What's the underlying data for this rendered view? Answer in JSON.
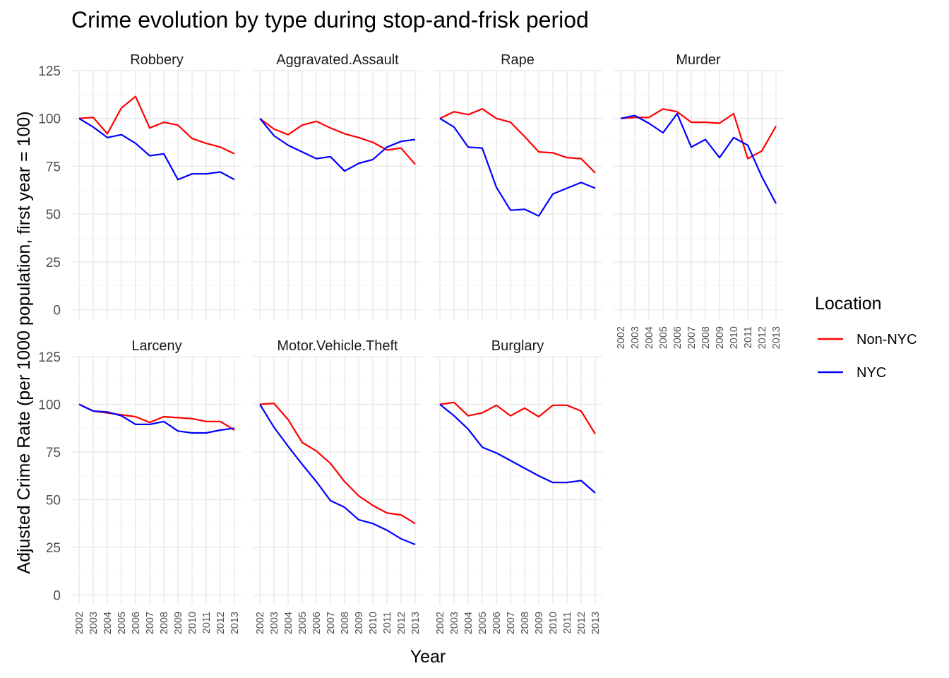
{
  "chart_data": {
    "type": "line",
    "title": "Crime evolution by type during stop-and-frisk period",
    "xlabel": "Year",
    "ylabel": "Adjusted Crime Rate (per 1000 population, first year = 100)",
    "x": [
      "2002",
      "2003",
      "2004",
      "2005",
      "2006",
      "2007",
      "2008",
      "2009",
      "2010",
      "2011",
      "2012",
      "2013"
    ],
    "ylim": [
      -5,
      125
    ],
    "yticks": [
      0,
      25,
      50,
      75,
      100,
      125
    ],
    "grid": true,
    "legend": {
      "title": "Location",
      "position": "right",
      "entries": [
        {
          "name": "Non-NYC",
          "color": "#ff0000"
        },
        {
          "name": "NYC",
          "color": "#0000ff"
        }
      ]
    },
    "facets": [
      {
        "name": "Robbery",
        "series": [
          {
            "name": "Non-NYC",
            "values": [
              100,
              100.5,
              92,
              105.5,
              111.5,
              95,
              98,
              96.5,
              89.5,
              87,
              85,
              81.5
            ]
          },
          {
            "name": "NYC",
            "values": [
              100,
              95.5,
              90,
              91.5,
              87,
              80.5,
              81.5,
              68,
              71,
              71,
              72,
              68
            ]
          }
        ]
      },
      {
        "name": "Aggravated.Assault",
        "series": [
          {
            "name": "Non-NYC",
            "values": [
              100,
              94.5,
              91.5,
              96.5,
              98.5,
              95,
              92,
              90,
              87.5,
              83.5,
              84.5,
              76
            ]
          },
          {
            "name": "NYC",
            "values": [
              100,
              91,
              86,
              82.5,
              79,
              80,
              72.5,
              76.5,
              78.5,
              85,
              88,
              89
            ]
          }
        ]
      },
      {
        "name": "Rape",
        "series": [
          {
            "name": "Non-NYC",
            "values": [
              100,
              103.5,
              102,
              105,
              100,
              98,
              90.5,
              82.5,
              82,
              79.5,
              79,
              71.5
            ]
          },
          {
            "name": "NYC",
            "values": [
              100,
              95.5,
              85,
              84.5,
              64,
              52,
              52.5,
              49,
              60.5,
              63.5,
              66.5,
              63.5
            ]
          }
        ]
      },
      {
        "name": "Murder",
        "series": [
          {
            "name": "Non-NYC",
            "values": [
              100,
              100.5,
              100.5,
              105,
              103.5,
              98,
              98,
              97.5,
              102.5,
              79,
              83,
              96
            ]
          },
          {
            "name": "NYC",
            "values": [
              100,
              101.5,
              97.5,
              92.5,
              102.5,
              85,
              89,
              79.5,
              90,
              86,
              69.5,
              55.5
            ]
          }
        ]
      },
      {
        "name": "Larceny",
        "series": [
          {
            "name": "Non-NYC",
            "values": [
              100,
              96.5,
              95.5,
              94.5,
              93.5,
              90.5,
              93.5,
              93,
              92.5,
              91,
              91,
              86.5
            ]
          },
          {
            "name": "NYC",
            "values": [
              100,
              96.5,
              96,
              94,
              89.5,
              89.5,
              91,
              86,
              85,
              85,
              86.5,
              87.5
            ]
          }
        ]
      },
      {
        "name": "Motor.Vehicle.Theft",
        "series": [
          {
            "name": "Non-NYC",
            "values": [
              100,
              100.5,
              92,
              80,
              75.5,
              69,
              59.5,
              52,
              47,
              43,
              42,
              37.5
            ]
          },
          {
            "name": "NYC",
            "values": [
              100,
              88,
              78,
              68.5,
              59.5,
              49.5,
              46,
              39.5,
              37.5,
              34,
              29.5,
              26.5
            ]
          }
        ]
      },
      {
        "name": "Burglary",
        "series": [
          {
            "name": "Non-NYC",
            "values": [
              100,
              101,
              94,
              95.5,
              99.5,
              94,
              98,
              93.5,
              99.5,
              99.5,
              96.5,
              84.5
            ]
          },
          {
            "name": "NYC",
            "values": [
              100,
              94,
              87,
              77.5,
              74.5,
              70.5,
              66.5,
              62.5,
              59,
              59,
              60,
              53.5
            ]
          }
        ]
      }
    ]
  }
}
